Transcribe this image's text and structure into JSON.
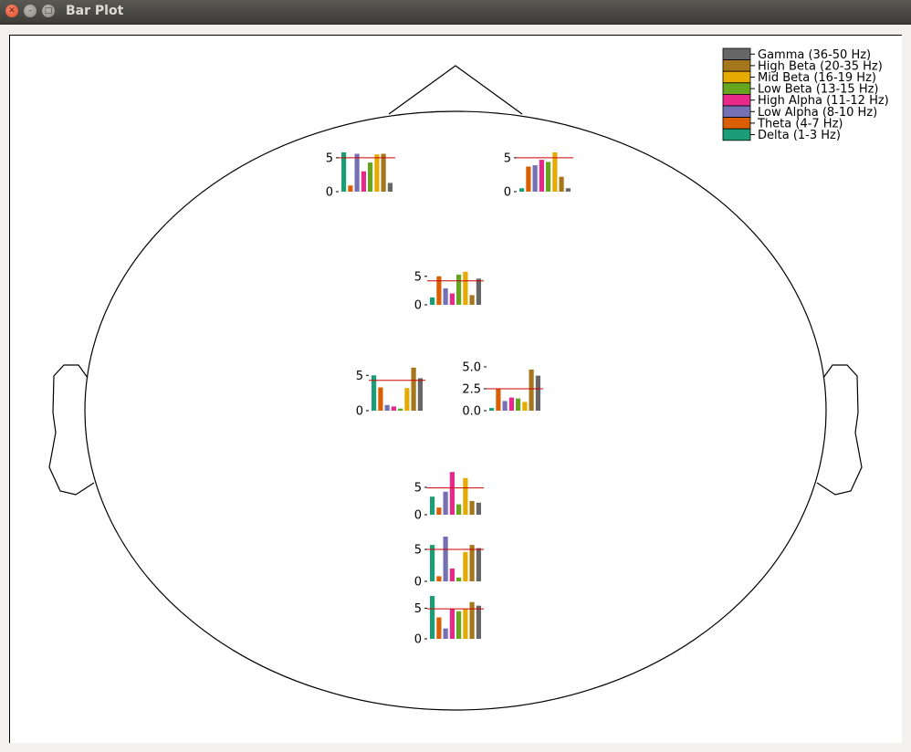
{
  "window": {
    "title": "Bar Plot"
  },
  "legend": [
    {
      "label": "Gamma (36-50 Hz)",
      "color": "#666666"
    },
    {
      "label": "High Beta (20-35 Hz)",
      "color": "#a6761d"
    },
    {
      "label": "Mid Beta (16-19 Hz)",
      "color": "#e6ab02"
    },
    {
      "label": "Low Beta (13-15 Hz)",
      "color": "#66a61e"
    },
    {
      "label": "High Alpha (11-12 Hz)",
      "color": "#e7298a"
    },
    {
      "label": "Low Alpha (8-10 Hz)",
      "color": "#7570b3"
    },
    {
      "label": "Theta (4-7 Hz)",
      "color": "#d95f02"
    },
    {
      "label": "Delta (1-3 Hz)",
      "color": "#1b9e77"
    }
  ],
  "colors": {
    "bands": [
      "#1b9e77",
      "#d95f02",
      "#7570b3",
      "#e7298a",
      "#66a61e",
      "#e6ab02",
      "#a6761d",
      "#666666"
    ],
    "mean_line": "#cc0000"
  },
  "chart_data": [
    {
      "type": "bar",
      "position": "frontal-left",
      "ylim": [
        0,
        6.2
      ],
      "yticks": [
        "0",
        "5"
      ],
      "threshold": 5.0,
      "values": [
        5.8,
        0.9,
        5.6,
        3.0,
        4.3,
        5.5,
        5.6,
        1.3
      ]
    },
    {
      "type": "bar",
      "position": "frontal-right",
      "ylim": [
        0,
        6.2
      ],
      "yticks": [
        "0",
        "5"
      ],
      "threshold": 5.0,
      "values": [
        0.5,
        3.7,
        3.9,
        4.7,
        4.4,
        5.8,
        2.2,
        0.5
      ]
    },
    {
      "type": "bar",
      "position": "central",
      "ylim": [
        0,
        8.0
      ],
      "yticks": [
        "0",
        "5"
      ],
      "threshold": 4.2,
      "values": [
        1.3,
        5.0,
        2.9,
        2.0,
        5.3,
        5.8,
        1.7,
        4.6
      ]
    },
    {
      "type": "bar",
      "position": "left-center",
      "ylim": [
        0,
        6.2
      ],
      "yticks": [
        "0",
        "5"
      ],
      "threshold": 4.3,
      "values": [
        5.0,
        3.3,
        0.8,
        0.6,
        0.3,
        3.2,
        6.1,
        4.6
      ]
    },
    {
      "type": "bar",
      "position": "right-center",
      "ylim": [
        0,
        5.0
      ],
      "yticks": [
        "0.0",
        "2.5",
        "5.0"
      ],
      "threshold": 2.5,
      "values": [
        0.3,
        2.5,
        1.1,
        1.5,
        1.4,
        1.0,
        4.7,
        4.0
      ]
    },
    {
      "type": "bar",
      "position": "parietal",
      "ylim": [
        0,
        8.0
      ],
      "yticks": [
        "0",
        "5"
      ],
      "threshold": 4.9,
      "values": [
        3.3,
        1.3,
        4.2,
        7.8,
        1.9,
        6.7,
        2.5,
        2.2
      ]
    },
    {
      "type": "bar",
      "position": "occipital-1",
      "ylim": [
        0,
        7.0
      ],
      "yticks": [
        "0",
        "5"
      ],
      "threshold": 5.0,
      "values": [
        5.7,
        0.8,
        7.0,
        2.0,
        0.6,
        4.6,
        5.7,
        5.2
      ]
    },
    {
      "type": "bar",
      "position": "occipital-2",
      "ylim": [
        0,
        7.0
      ],
      "yticks": [
        "0",
        "5"
      ],
      "threshold": 4.9,
      "values": [
        7.0,
        3.5,
        1.7,
        4.9,
        4.5,
        4.9,
        6.0,
        5.4
      ]
    }
  ]
}
